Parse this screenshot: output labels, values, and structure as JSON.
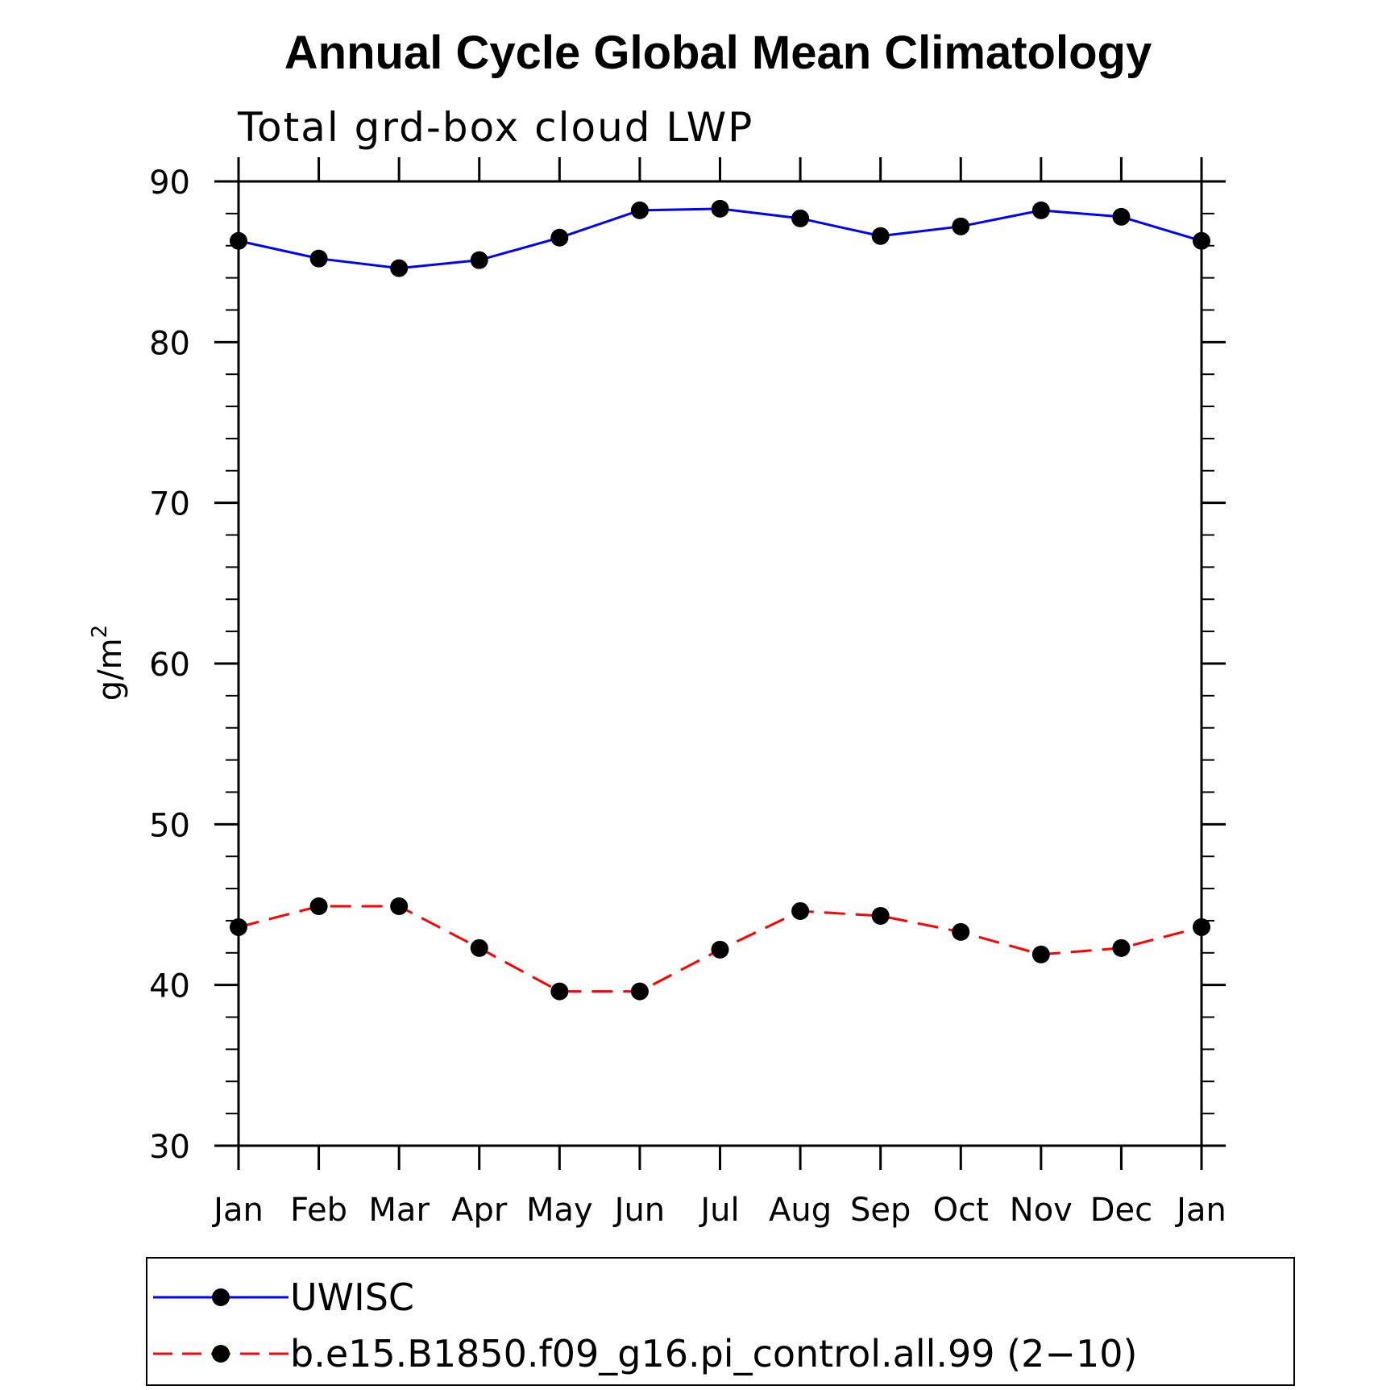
{
  "chart_data": {
    "type": "line",
    "title": "Annual Cycle Global Mean Climatology",
    "subtitle": "Total grd-box cloud LWP",
    "ylabel": "g/m",
    "ylabel_superscript": "2",
    "xlabel": "",
    "categories": [
      "Jan",
      "Feb",
      "Mar",
      "Apr",
      "May",
      "Jun",
      "Jul",
      "Aug",
      "Sep",
      "Oct",
      "Nov",
      "Dec",
      "Jan"
    ],
    "ylim": [
      30,
      90
    ],
    "yticks": [
      "30",
      "40",
      "50",
      "60",
      "70",
      "80",
      "90"
    ],
    "grid": false,
    "legend_position": "bottom",
    "series": [
      {
        "name": "UWISC",
        "color": "#0000ff",
        "style": "solid",
        "marker": "filled-circle",
        "values": [
          86.3,
          85.2,
          84.6,
          85.1,
          86.5,
          88.2,
          88.3,
          87.7,
          86.6,
          87.2,
          88.2,
          87.8,
          86.3
        ]
      },
      {
        "name": "b.e15.B1850.f09_g16.pi_control.all.99 (2−10)",
        "color": "#ff0000",
        "style": "dashed",
        "marker": "filled-circle",
        "values": [
          43.6,
          44.9,
          44.9,
          42.3,
          39.6,
          39.6,
          42.2,
          44.6,
          44.3,
          43.3,
          41.9,
          42.3,
          43.6
        ]
      }
    ]
  }
}
